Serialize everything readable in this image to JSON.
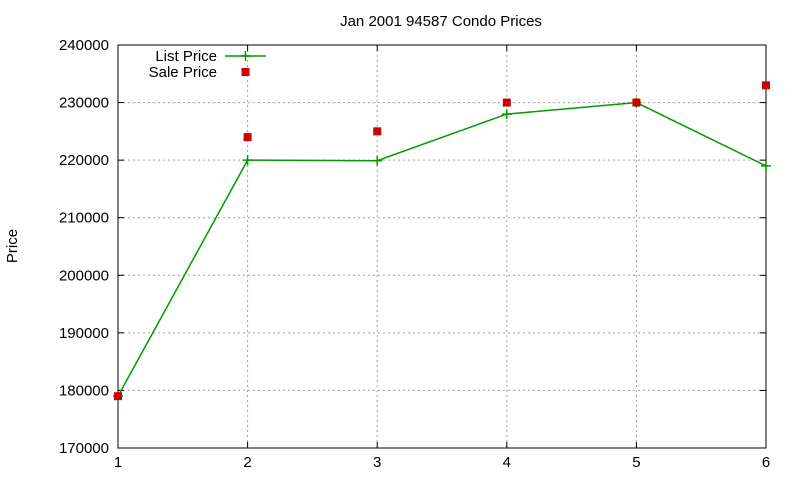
{
  "chart_data": {
    "type": "line",
    "title": "Jan 2001 94587 Condo Prices",
    "xlabel": "",
    "ylabel": "Price",
    "x": [
      1,
      2,
      3,
      4,
      5,
      6
    ],
    "xlim": [
      1,
      6
    ],
    "ylim": [
      170000,
      240000
    ],
    "xticks": [
      1,
      2,
      3,
      4,
      5,
      6
    ],
    "yticks": [
      170000,
      180000,
      190000,
      200000,
      210000,
      220000,
      230000,
      240000
    ],
    "grid": true,
    "legend_position": "top-left",
    "series": [
      {
        "name": "List Price",
        "style": "line-with-plus-markers",
        "color": "#009900",
        "values": [
          179000,
          220000,
          219900,
          228000,
          230000,
          219000
        ]
      },
      {
        "name": "Sale Price",
        "style": "square-markers",
        "color": "#cc0000",
        "values": [
          179000,
          224000,
          225000,
          230000,
          230000,
          233000
        ]
      }
    ]
  }
}
